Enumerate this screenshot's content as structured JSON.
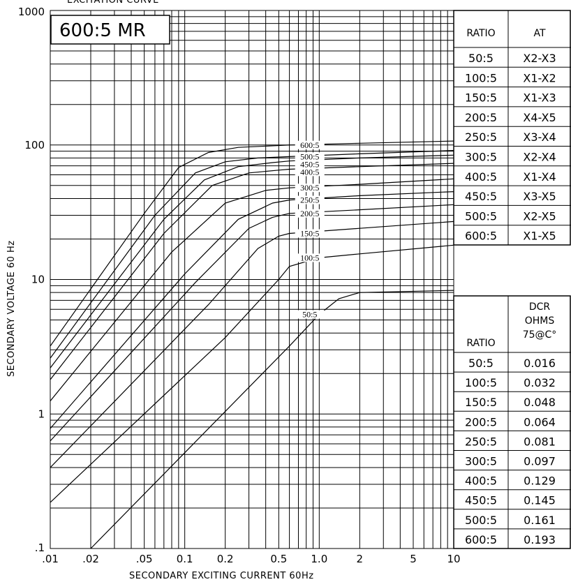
{
  "title": "EXCITATION CURVE",
  "chart_data": {
    "type": "line",
    "title": "EXCITATION CURVE",
    "box_label": "600:5 MR",
    "xlabel": "SECONDARY EXCITING CURRENT 60Hz",
    "ylabel": "SECONDARY VOLTAGE 60 Hz",
    "xscale": "log",
    "yscale": "log",
    "xlim": [
      0.01,
      10
    ],
    "ylim": [
      0.1,
      1000
    ],
    "x_tick_labels": [
      ".01",
      ".02",
      ".05",
      "0.1",
      "0.2",
      "0.5",
      "1.0",
      "2",
      "5",
      "10"
    ],
    "x_tick_values": [
      0.01,
      0.02,
      0.05,
      0.1,
      0.2,
      0.5,
      1.0,
      2,
      5,
      10
    ],
    "y_tick_labels": [
      ".1",
      "1",
      "10",
      "100",
      "1000"
    ],
    "y_tick_values": [
      0.1,
      1,
      10,
      100,
      1000
    ],
    "grid": true,
    "series": [
      {
        "name": "600:5",
        "points": [
          [
            0.01,
            3.2
          ],
          [
            0.05,
            31
          ],
          [
            0.09,
            68
          ],
          [
            0.15,
            88
          ],
          [
            0.25,
            96
          ],
          [
            0.6,
            100
          ],
          [
            2,
            103
          ],
          [
            10,
            107
          ]
        ]
      },
      {
        "name": "500:5",
        "points": [
          [
            0.01,
            2.6
          ],
          [
            0.06,
            30
          ],
          [
            0.12,
            62
          ],
          [
            0.2,
            75
          ],
          [
            0.35,
            80
          ],
          [
            0.6,
            82
          ],
          [
            2,
            86
          ],
          [
            10,
            91
          ]
        ]
      },
      {
        "name": "450:5",
        "points": [
          [
            0.01,
            2.2
          ],
          [
            0.07,
            28
          ],
          [
            0.14,
            55
          ],
          [
            0.25,
            69
          ],
          [
            0.45,
            74
          ],
          [
            0.6,
            76
          ],
          [
            2,
            80
          ],
          [
            10,
            84
          ]
        ]
      },
      {
        "name": "400:5",
        "points": [
          [
            0.01,
            1.8
          ],
          [
            0.07,
            22
          ],
          [
            0.16,
            50
          ],
          [
            0.3,
            62
          ],
          [
            0.5,
            65
          ],
          [
            0.6,
            66
          ],
          [
            2,
            69
          ],
          [
            10,
            73
          ]
        ]
      },
      {
        "name": "300:5",
        "points": [
          [
            0.01,
            1.25
          ],
          [
            0.08,
            16
          ],
          [
            0.2,
            37
          ],
          [
            0.4,
            46
          ],
          [
            0.6,
            48
          ],
          [
            2,
            51
          ],
          [
            10,
            56
          ]
        ]
      },
      {
        "name": "250:5",
        "points": [
          [
            0.01,
            0.78
          ],
          [
            0.1,
            11
          ],
          [
            0.25,
            28
          ],
          [
            0.45,
            37
          ],
          [
            0.6,
            39
          ],
          [
            2,
            42
          ],
          [
            10,
            45
          ]
        ]
      },
      {
        "name": "200:5",
        "points": [
          [
            0.01,
            0.63
          ],
          [
            0.12,
            9.5
          ],
          [
            0.3,
            24
          ],
          [
            0.45,
            29
          ],
          [
            0.6,
            31
          ],
          [
            2,
            33
          ],
          [
            10,
            36
          ]
        ]
      },
      {
        "name": "150:5",
        "points": [
          [
            0.01,
            0.4
          ],
          [
            0.15,
            6.5
          ],
          [
            0.35,
            17
          ],
          [
            0.5,
            21
          ],
          [
            0.6,
            22
          ],
          [
            2,
            24
          ],
          [
            10,
            27
          ]
        ]
      },
      {
        "name": "100:5",
        "points": [
          [
            0.01,
            0.22
          ],
          [
            0.2,
            3.7
          ],
          [
            0.5,
            10
          ],
          [
            0.6,
            12.5
          ],
          [
            1.0,
            14.5
          ],
          [
            2,
            15.5
          ],
          [
            10,
            18
          ]
        ]
      },
      {
        "name": "50:5",
        "points": [
          [
            0.02,
            0.1
          ],
          [
            0.6,
            3.2
          ],
          [
            1.0,
            5.5
          ],
          [
            1.4,
            7.2
          ],
          [
            2,
            8
          ],
          [
            10,
            8.3
          ]
        ]
      }
    ]
  },
  "ratio_table": {
    "headers": [
      "RATIO",
      "AT"
    ],
    "rows": [
      [
        "50:5",
        "X2-X3"
      ],
      [
        "100:5",
        "X1-X2"
      ],
      [
        "150:5",
        "X1-X3"
      ],
      [
        "200:5",
        "X4-X5"
      ],
      [
        "250:5",
        "X3-X4"
      ],
      [
        "300:5",
        "X2-X4"
      ],
      [
        "400:5",
        "X1-X4"
      ],
      [
        "450:5",
        "X3-X5"
      ],
      [
        "500:5",
        "X2-X5"
      ],
      [
        "600:5",
        "X1-X5"
      ]
    ]
  },
  "dcr_table": {
    "header_ratio": "RATIO",
    "header_dcr_lines": [
      "DCR",
      "OHMS",
      "75@C°"
    ],
    "rows": [
      [
        "50:5",
        "0.016"
      ],
      [
        "100:5",
        "0.032"
      ],
      [
        "150:5",
        "0.048"
      ],
      [
        "200:5",
        "0.064"
      ],
      [
        "250:5",
        "0.081"
      ],
      [
        "300:5",
        "0.097"
      ],
      [
        "400:5",
        "0.129"
      ],
      [
        "450:5",
        "0.145"
      ],
      [
        "500:5",
        "0.161"
      ],
      [
        "600:5",
        "0.193"
      ]
    ]
  }
}
